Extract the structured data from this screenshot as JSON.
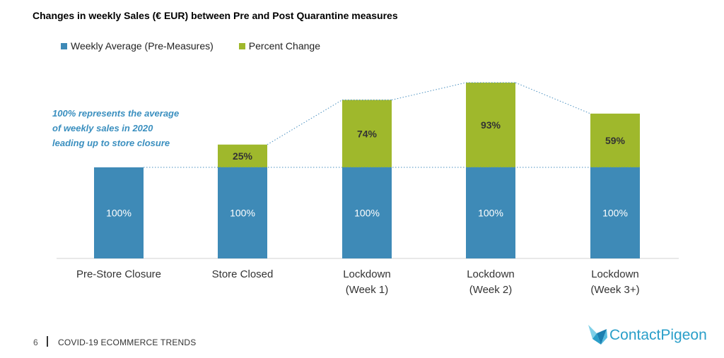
{
  "title": "Changes in weekly Sales (€ EUR) between Pre and Post Quarantine measures",
  "annotation": {
    "lines": [
      "100% represents the average",
      "of weekly sales in 2020",
      "leading up to store closure"
    ]
  },
  "colors": {
    "base": "#3e8ab7",
    "change": "#9fb82c",
    "annotation": "#3a8fbf",
    "dotted": "#4a90c0",
    "axis": "#d0d0d0"
  },
  "footer": {
    "page_number": "6",
    "text": "COVID-19 ECOMMERCE TRENDS",
    "logo_text": "ContactPigeon"
  },
  "chart_data": {
    "type": "bar",
    "stacked": true,
    "title": "Changes in weekly Sales (€ EUR) between Pre and Post Quarantine measures",
    "legend_position": "top-left",
    "grid": false,
    "categories": [
      [
        "Pre-Store Closure"
      ],
      [
        "Store Closed"
      ],
      [
        "Lockdown",
        "(Week 1)"
      ],
      [
        "Lockdown",
        "(Week 2)"
      ],
      [
        "Lockdown",
        "(Week 3+)"
      ]
    ],
    "series": [
      {
        "name": "Weekly Average (Pre-Measures)",
        "values": [
          100,
          100,
          100,
          100,
          100
        ],
        "labels": [
          "100%",
          "100%",
          "100%",
          "100%",
          "100%"
        ],
        "color": "#3e8ab7"
      },
      {
        "name": "Percent Change",
        "values": [
          0,
          25,
          74,
          93,
          59
        ],
        "labels": [
          "",
          "25%",
          "74%",
          "93%",
          "59%"
        ],
        "color": "#9fb82c"
      }
    ],
    "ylim": [
      0,
      200
    ]
  }
}
